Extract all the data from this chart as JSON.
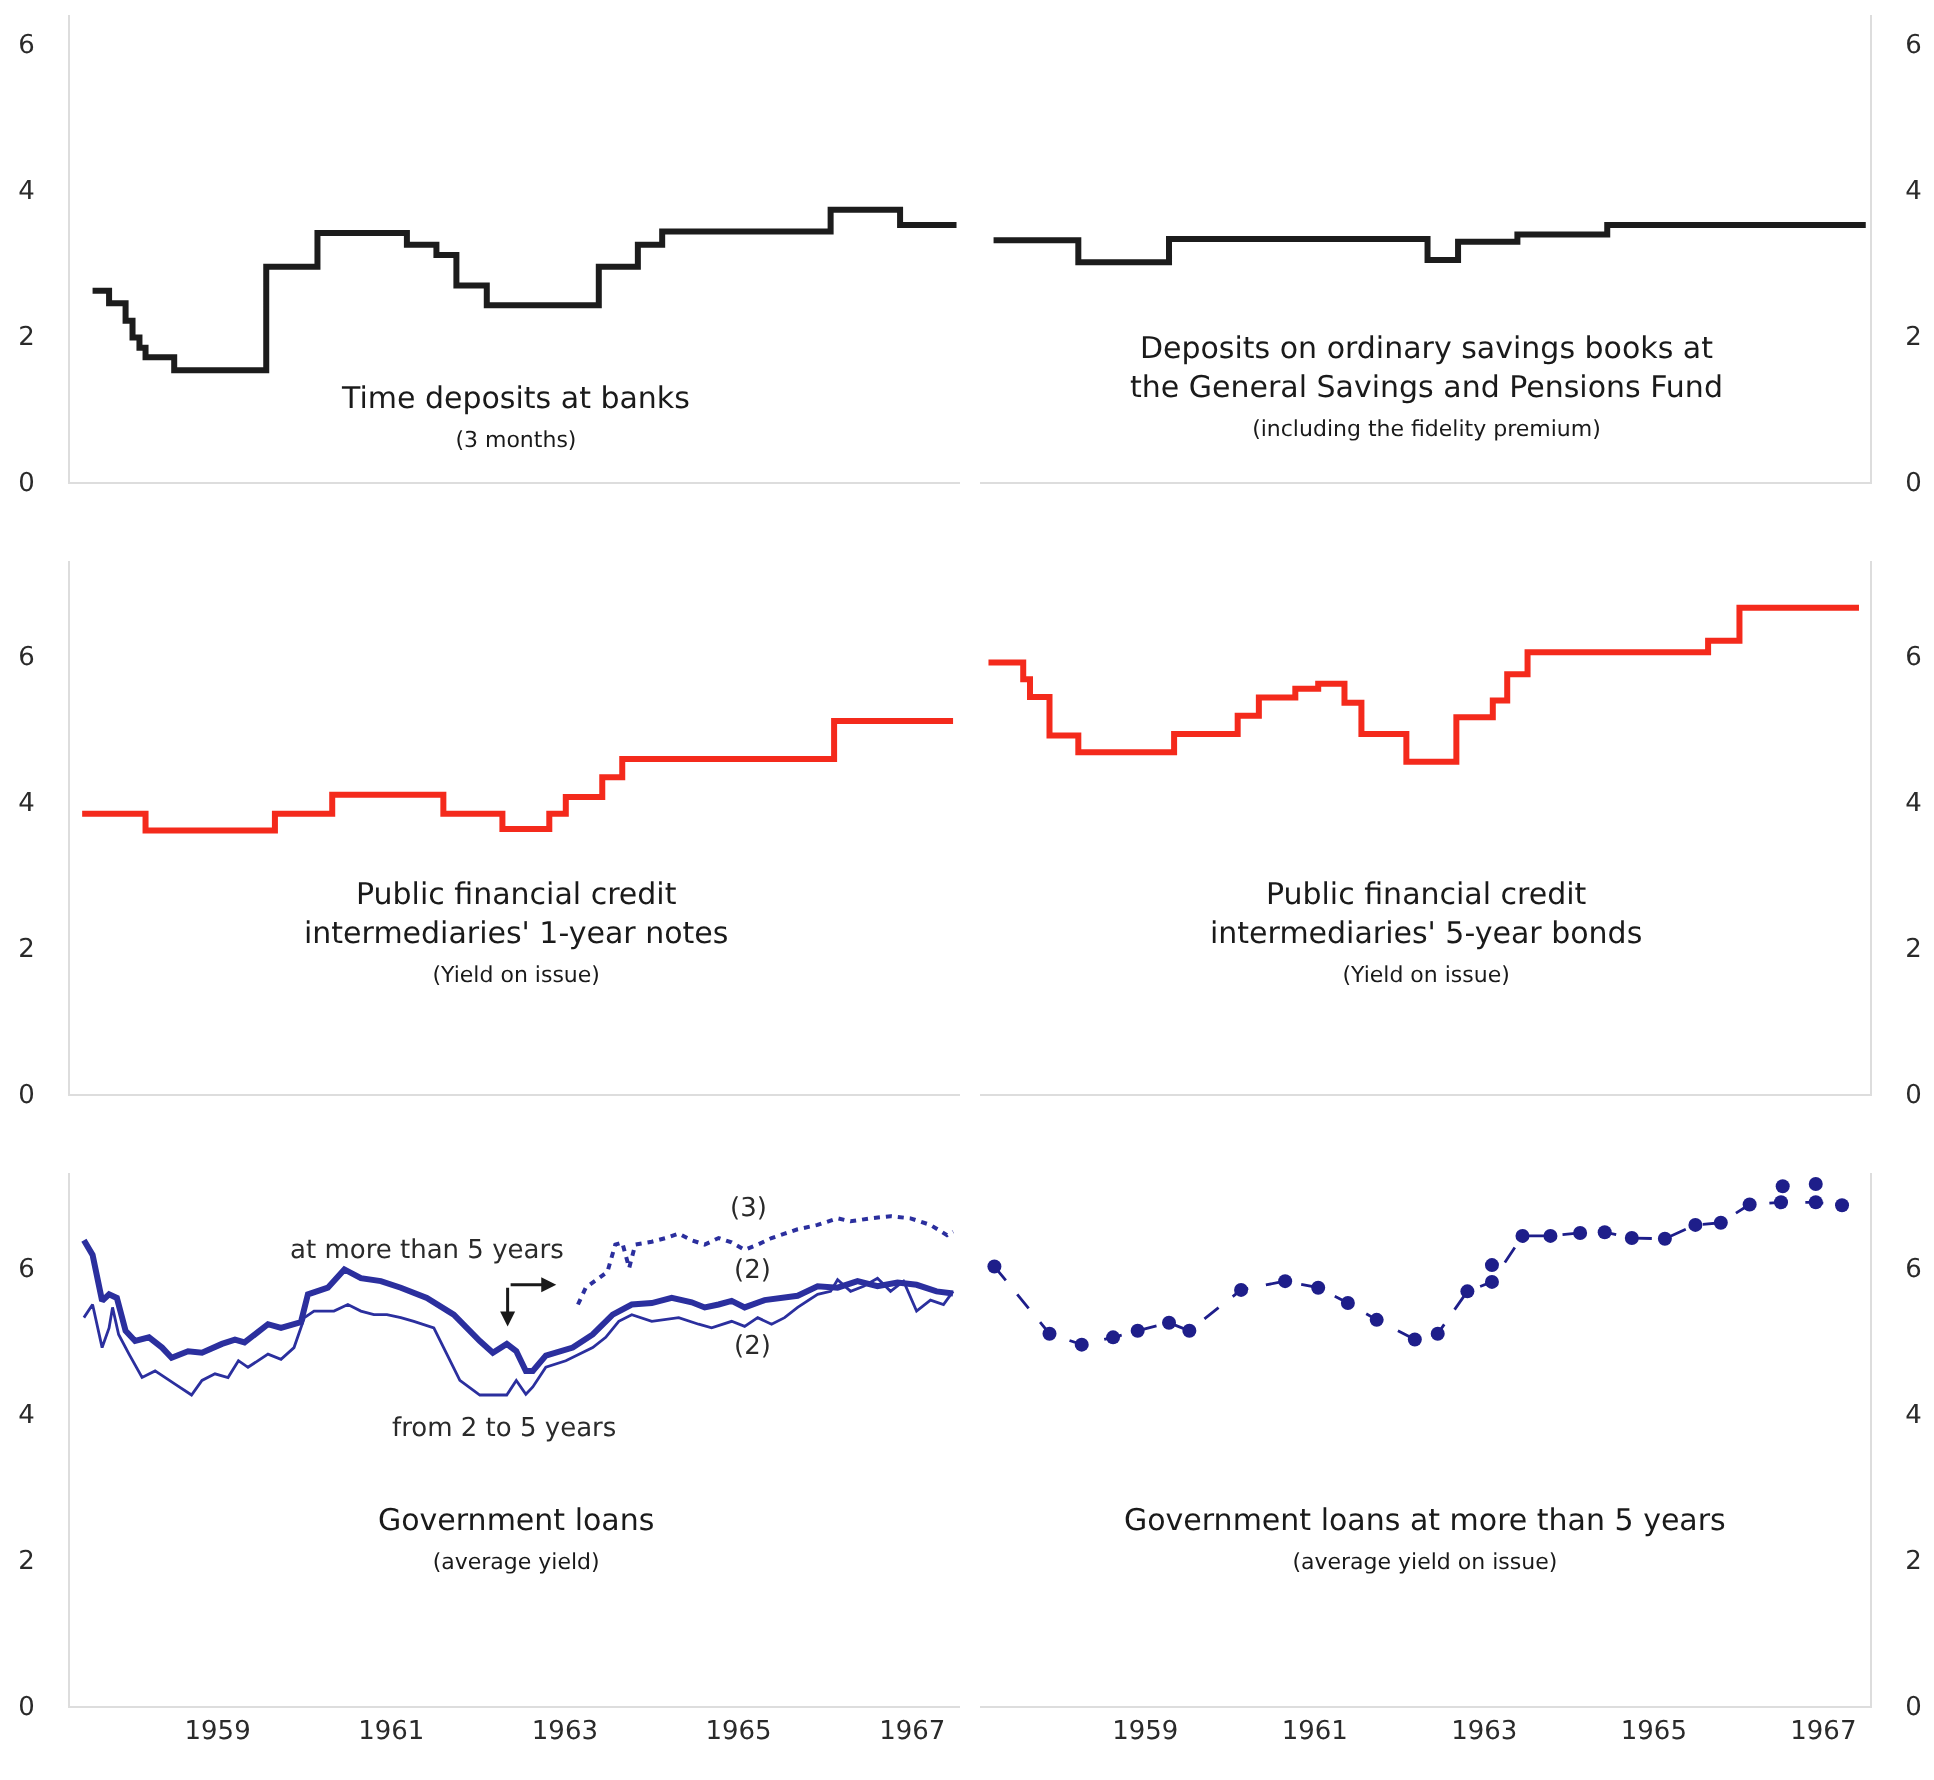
{
  "chart_data": [
    {
      "type": "step",
      "title": "Time deposits at banks",
      "subtitle": "(3 months)",
      "tick_labels": "y",
      "xlim": [
        1957.3,
        1967.55
      ],
      "xticks": [
        1959,
        1961,
        1963,
        1965,
        1967
      ],
      "ylim": [
        0,
        6.4
      ],
      "yticks": [
        0,
        2,
        4,
        6
      ],
      "series": [
        {
          "color": "#1c1c1c",
          "x": [
            1957.56,
            1957.75,
            1957.94,
            1958.02,
            1958.1,
            1958.17,
            1958.5,
            1959.56,
            1960.15,
            1961.18,
            1961.52,
            1961.75,
            1962.1,
            1963.39,
            1963.84,
            1964.12,
            1966.06,
            1966.86,
            1967.51
          ],
          "values": [
            2.62,
            2.45,
            2.21,
            1.98,
            1.84,
            1.71,
            1.53,
            2.95,
            3.41,
            3.25,
            3.11,
            2.69,
            2.42,
            2.95,
            3.25,
            3.43,
            3.73,
            3.52,
            3.52
          ]
        }
      ]
    },
    {
      "type": "step",
      "title": "Deposits on ordinary savings books at the General Savings and Pensions Fund",
      "subtitle": "(including the fidelity premium)",
      "tick_labels": "y",
      "xlim": [
        1957.05,
        1967.55
      ],
      "xticks": [
        1959,
        1961,
        1963,
        1965,
        1967
      ],
      "ylim": [
        0,
        6.4
      ],
      "yticks": [
        0,
        2,
        4,
        6
      ],
      "series": [
        {
          "color": "#1c1c1c",
          "x": [
            1957.21,
            1958.21,
            1959.28,
            1962.33,
            1962.69,
            1963.39,
            1964.45,
            1967.5
          ],
          "values": [
            3.31,
            3.01,
            3.33,
            3.04,
            3.29,
            3.39,
            3.52,
            3.52
          ]
        }
      ]
    },
    {
      "type": "step",
      "title": "Public financial credit intermediaries' 1-year notes",
      "subtitle": "(Yield on issue)",
      "tick_labels": "y",
      "xlim": [
        1957.3,
        1967.55
      ],
      "xticks": [
        1959,
        1961,
        1963,
        1965,
        1967
      ],
      "ylim": [
        0,
        7.3
      ],
      "yticks": [
        0,
        2,
        4,
        6
      ],
      "series": [
        {
          "color": "#f42a1c",
          "x": [
            1957.44,
            1958.17,
            1959.66,
            1960.32,
            1961.6,
            1962.28,
            1962.82,
            1963.01,
            1963.43,
            1963.66,
            1966.1,
            1967.47
          ],
          "values": [
            3.84,
            3.61,
            3.84,
            4.1,
            3.84,
            3.63,
            3.84,
            4.07,
            4.34,
            4.59,
            5.11,
            5.11
          ]
        }
      ]
    },
    {
      "type": "step",
      "title": "Public financial credit intermediaries' 5-year bonds",
      "subtitle": "(Yield on issue)",
      "tick_labels": "y",
      "xlim": [
        1957.05,
        1967.55
      ],
      "xticks": [
        1959,
        1961,
        1963,
        1965,
        1967
      ],
      "ylim": [
        0,
        7.3
      ],
      "yticks": [
        0,
        2,
        4,
        6
      ],
      "series": [
        {
          "color": "#f42a1c",
          "x": [
            1957.15,
            1957.56,
            1957.64,
            1957.87,
            1958.21,
            1959.34,
            1960.09,
            1960.34,
            1960.77,
            1961.04,
            1961.35,
            1961.55,
            1962.08,
            1962.67,
            1963.1,
            1963.27,
            1963.51,
            1965.64,
            1966.01,
            1967.42
          ],
          "values": [
            5.91,
            5.68,
            5.44,
            4.91,
            4.68,
            4.93,
            5.18,
            5.43,
            5.55,
            5.62,
            5.36,
            4.93,
            4.55,
            5.16,
            5.39,
            5.75,
            6.05,
            6.21,
            6.66,
            6.66
          ]
        }
      ]
    },
    {
      "type": "line",
      "title": "Government loans",
      "subtitle": "(average yield)",
      "xlim": [
        1957.3,
        1967.55
      ],
      "xticks": [
        1959,
        1961,
        1963,
        1965,
        1967
      ],
      "ylim": [
        0,
        7.3
      ],
      "yticks": [
        0,
        2,
        4,
        6
      ],
      "annotations": [
        "(3)",
        "(2)",
        "(2)"
      ],
      "series": [
        {
          "name": "at more than 5 years",
          "color": "#2b2f9e",
          "line_style": "solid",
          "x": [
            1957.46,
            1957.56,
            1957.67,
            1957.75,
            1957.84,
            1957.94,
            1958.05,
            1958.21,
            1958.36,
            1958.47,
            1958.66,
            1958.82,
            1959.05,
            1959.2,
            1959.31,
            1959.58,
            1959.73,
            1959.96,
            1960.04,
            1960.27,
            1960.46,
            1960.65,
            1960.88,
            1961.11,
            1961.41,
            1961.72,
            1962.02,
            1962.17,
            1962.33,
            1962.44,
            1962.55,
            1962.63,
            1962.78,
            1963.09,
            1963.32,
            1963.55,
            1963.77,
            1964.0,
            1964.23,
            1964.46,
            1964.61,
            1964.77,
            1964.92,
            1965.07,
            1965.3,
            1965.68,
            1965.91,
            1966.14,
            1966.37,
            1966.6,
            1966.83,
            1967.05,
            1967.28,
            1967.47
          ],
          "values": [
            6.38,
            6.18,
            5.55,
            5.64,
            5.59,
            5.14,
            5.0,
            5.05,
            4.91,
            4.77,
            4.86,
            4.84,
            4.96,
            5.02,
            4.98,
            5.23,
            5.18,
            5.26,
            5.64,
            5.73,
            5.98,
            5.86,
            5.82,
            5.73,
            5.59,
            5.36,
            5.0,
            4.84,
            4.96,
            4.86,
            4.59,
            4.59,
            4.8,
            4.91,
            5.09,
            5.36,
            5.5,
            5.52,
            5.59,
            5.53,
            5.46,
            5.5,
            5.55,
            5.46,
            5.56,
            5.62,
            5.75,
            5.73,
            5.82,
            5.75,
            5.8,
            5.77,
            5.68,
            5.65
          ]
        },
        {
          "name": "from 2 to 5 years",
          "color": "#2b2f9e",
          "line_style": "solid",
          "x": [
            1957.46,
            1957.56,
            1957.67,
            1957.75,
            1957.79,
            1957.86,
            1957.98,
            1958.13,
            1958.28,
            1958.51,
            1958.7,
            1958.82,
            1958.97,
            1959.12,
            1959.24,
            1959.35,
            1959.58,
            1959.73,
            1959.88,
            1960.0,
            1960.11,
            1960.34,
            1960.5,
            1960.65,
            1960.8,
            1960.95,
            1961.11,
            1961.26,
            1961.49,
            1961.64,
            1961.79,
            1962.02,
            1962.33,
            1962.44,
            1962.55,
            1962.63,
            1962.78,
            1963.01,
            1963.32,
            1963.47,
            1963.62,
            1963.77,
            1964.0,
            1964.31,
            1964.54,
            1964.69,
            1964.92,
            1965.07,
            1965.22,
            1965.38,
            1965.53,
            1965.68,
            1965.91,
            1966.06,
            1966.14,
            1966.29,
            1966.44,
            1966.6,
            1966.75,
            1966.9,
            1967.05,
            1967.21,
            1967.36,
            1967.47
          ],
          "values": [
            5.32,
            5.5,
            4.91,
            5.18,
            5.46,
            5.09,
            4.82,
            4.5,
            4.59,
            4.41,
            4.26,
            4.46,
            4.55,
            4.5,
            4.73,
            4.64,
            4.82,
            4.75,
            4.91,
            5.32,
            5.41,
            5.41,
            5.5,
            5.41,
            5.36,
            5.36,
            5.32,
            5.27,
            5.18,
            4.82,
            4.46,
            4.26,
            4.26,
            4.46,
            4.27,
            4.37,
            4.64,
            4.73,
            4.91,
            5.05,
            5.27,
            5.36,
            5.27,
            5.32,
            5.23,
            5.18,
            5.27,
            5.2,
            5.32,
            5.23,
            5.32,
            5.46,
            5.64,
            5.68,
            5.84,
            5.68,
            5.75,
            5.86,
            5.68,
            5.82,
            5.41,
            5.56,
            5.5,
            5.68
          ]
        },
        {
          "color": "#2b2f9e",
          "line_style": "dotted",
          "x": [
            1963.15,
            1963.24,
            1963.39,
            1963.49,
            1963.58,
            1963.66,
            1963.74,
            1963.81,
            1964.0,
            1964.16,
            1964.31,
            1964.46,
            1964.61,
            1964.77,
            1964.92,
            1965.07,
            1965.22,
            1965.38,
            1965.53,
            1965.68,
            1965.91,
            1966.14,
            1966.29,
            1966.52,
            1966.75,
            1966.98,
            1967.21,
            1967.4,
            1967.47
          ],
          "values": [
            5.5,
            5.73,
            5.86,
            5.95,
            6.32,
            6.35,
            6.0,
            6.32,
            6.36,
            6.41,
            6.47,
            6.38,
            6.32,
            6.41,
            6.35,
            6.25,
            6.32,
            6.41,
            6.47,
            6.53,
            6.59,
            6.68,
            6.64,
            6.68,
            6.71,
            6.68,
            6.59,
            6.45,
            6.5
          ]
        }
      ]
    },
    {
      "type": "line",
      "title": "Government loans at more than 5 years",
      "subtitle": "(average yield on issue)",
      "marker": "circle",
      "xlim": [
        1957.05,
        1967.55
      ],
      "xticks": [
        1959,
        1961,
        1963,
        1965,
        1967
      ],
      "ylim": [
        0,
        7.3
      ],
      "yticks": [
        0,
        2,
        4,
        6
      ],
      "series": [
        {
          "color": "#1e1e8a",
          "line_style": "dashed",
          "x": [
            1957.22,
            1957.87,
            1958.25,
            1958.62,
            1958.91,
            1959.28,
            1959.52,
            1960.13,
            1960.65,
            1961.04,
            1961.39,
            1961.73,
            1962.18,
            1962.45,
            1962.8,
            1963.09,
            1963.45,
            1963.78,
            1964.13,
            1964.42,
            1964.74,
            1965.13,
            1965.49,
            1965.79,
            1966.13,
            1966.5,
            1966.91,
            1967.22
          ],
          "values": [
            6.02,
            5.1,
            4.95,
            5.05,
            5.14,
            5.25,
            5.14,
            5.7,
            5.82,
            5.73,
            5.52,
            5.29,
            5.02,
            5.1,
            5.68,
            5.81,
            6.44,
            6.44,
            6.48,
            6.49,
            6.41,
            6.4,
            6.59,
            6.62,
            6.87,
            6.9,
            6.9,
            6.86
          ]
        },
        {
          "type": "scatter",
          "color": "#1e1e8a",
          "x": [
            1963.09,
            1966.52,
            1966.91
          ],
          "values": [
            6.04,
            7.12,
            7.15
          ]
        }
      ]
    }
  ]
}
